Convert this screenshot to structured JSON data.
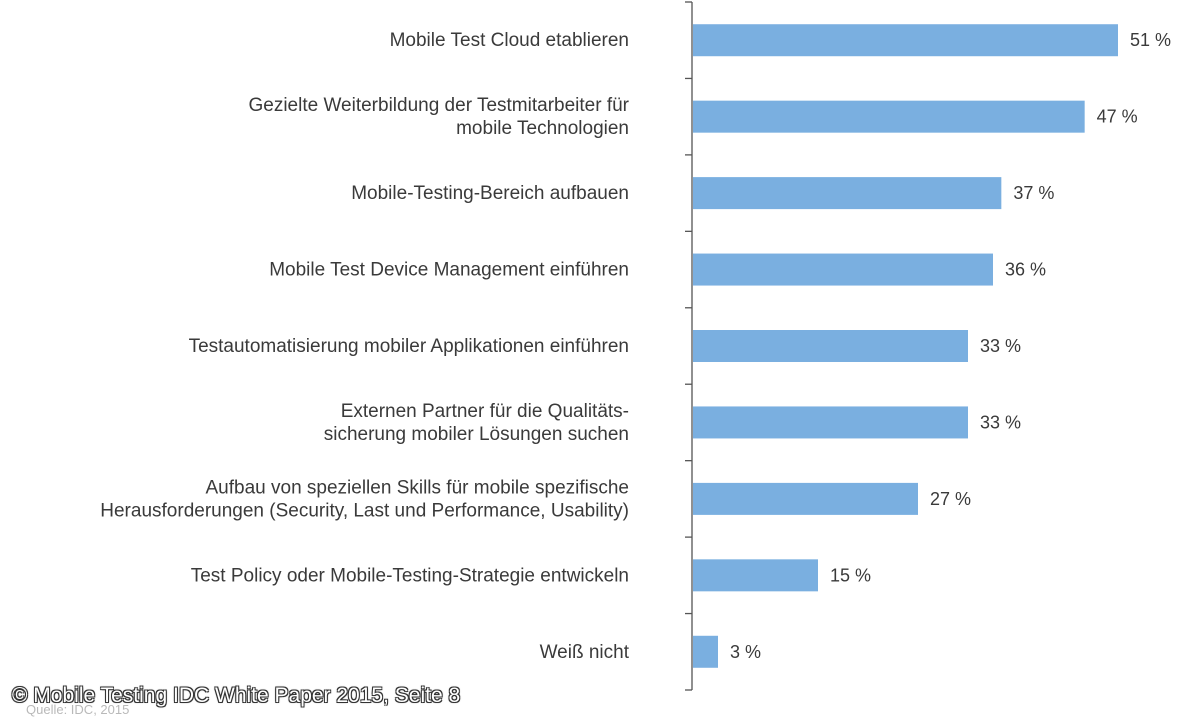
{
  "chart_data": {
    "type": "bar",
    "orientation": "horizontal",
    "categories": [
      [
        "Mobile Test Cloud etablieren"
      ],
      [
        "Gezielte Weiterbildung der Testmitarbeiter für",
        "mobile Technologien"
      ],
      [
        "Mobile-Testing-Bereich aufbauen"
      ],
      [
        "Mobile Test Device Management einführen"
      ],
      [
        "Testautomatisierung mobiler Applikationen einführen"
      ],
      [
        "Externen Partner für die Qualitäts-",
        "sicherung mobiler Lösungen suchen"
      ],
      [
        "Aufbau von speziellen Skills für mobile spezifische",
        "Herausforderungen (Security, Last und Performance, Usability)"
      ],
      [
        "Test Policy oder Mobile-Testing-Strategie entwickeln"
      ],
      [
        "Weiß nicht"
      ]
    ],
    "values": [
      51,
      47,
      37,
      36,
      33,
      33,
      27,
      15,
      3
    ],
    "value_labels": [
      "51 %",
      "47 %",
      "37 %",
      "36 %",
      "33 %",
      "33 %",
      "27 %",
      "15 %",
      "3 %"
    ],
    "bar_color": "#7aafe0",
    "axis_color": "#555555",
    "xlim": [
      0,
      51
    ],
    "grid": false,
    "legend": "none"
  },
  "source_text": "Quelle: IDC, 2015",
  "watermark_text": "© Mobile Testing IDC White Paper 2015, Seite 8"
}
